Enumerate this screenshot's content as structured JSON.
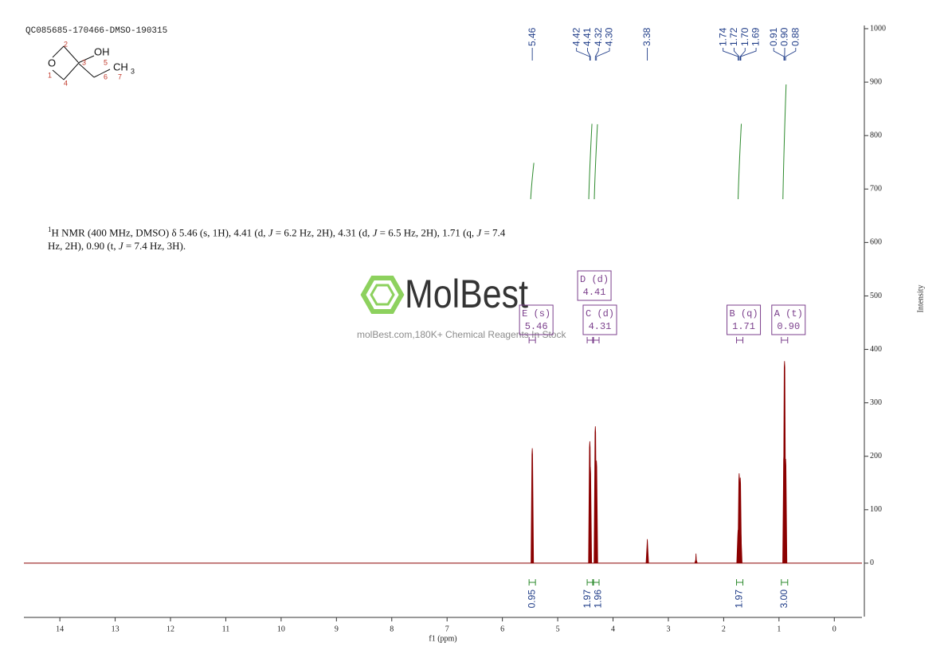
{
  "header": {
    "sample_id": "QC085685-170466-DMSO-190315"
  },
  "structure": {
    "atoms": [
      "O",
      "OH",
      "CH",
      "3"
    ],
    "numbers": [
      "1",
      "2",
      "3",
      "4",
      "5",
      "6",
      "7"
    ]
  },
  "description": [
    "1",
    "H NMR (400 MHz, DMSO) δ 5.46 (s, 1H), 4.41 (d, ",
    "J",
    " = 6.2 Hz, 2H), 4.31 (d, ",
    "J",
    " = 6.5 Hz, 2H), 1.71 (q, ",
    "J",
    " = 7.4 Hz, 2H), 0.90 (t, ",
    "J",
    " = 7.4 Hz, 3H)."
  ],
  "watermark": {
    "brand": "MolBest",
    "tagline": "molBest.com,180K+ Chemical Reagents In Stock"
  },
  "chart_data": {
    "type": "nmr",
    "xlabel": "f1 (ppm)",
    "ylabel": "Intensity",
    "xlim": [
      14.65,
      -0.5
    ],
    "ylim": [
      -100,
      1000
    ],
    "xticks": [
      14,
      13,
      12,
      11,
      10,
      9,
      8,
      7,
      6,
      5,
      4,
      3,
      2,
      1,
      0
    ],
    "yticks": [
      0,
      100,
      200,
      300,
      400,
      500,
      600,
      700,
      800,
      900,
      1000
    ],
    "color": "#8b0000",
    "label_color": "#1f3c88",
    "peaks": {
      "x": [
        5.46,
        4.42,
        4.41,
        4.32,
        4.3,
        3.38,
        2.5,
        1.74,
        1.72,
        1.7,
        1.69,
        0.91,
        0.9,
        0.88
      ],
      "values": [
        215,
        228,
        180,
        256,
        192,
        45,
        18,
        62,
        168,
        160,
        60,
        205,
        378,
        195
      ],
      "labels": [
        "5.46",
        "4.42",
        "4.41",
        "4.32",
        "4.30",
        "3.38",
        null,
        "1.74",
        "1.72",
        "1.70",
        "1.69",
        "0.91",
        "0.90",
        "0.88"
      ]
    },
    "integrals": {
      "x": [
        5.46,
        4.41,
        4.31,
        1.71,
        0.9
      ],
      "values": [
        0.95,
        1.97,
        1.96,
        1.97,
        3.0
      ],
      "value_labels": [
        "0.95",
        "1.97",
        "1.96",
        "1.97",
        "3.00"
      ],
      "color": "#2e8b2e"
    },
    "multiplets": [
      {
        "name": "E (s)",
        "shift": "5.46"
      },
      {
        "name": "C (d)",
        "shift": "4.31"
      },
      {
        "name": "D (d)",
        "shift": "4.41"
      },
      {
        "name": "B (q)",
        "shift": "1.71"
      },
      {
        "name": "A (t)",
        "shift": "0.90"
      }
    ]
  }
}
